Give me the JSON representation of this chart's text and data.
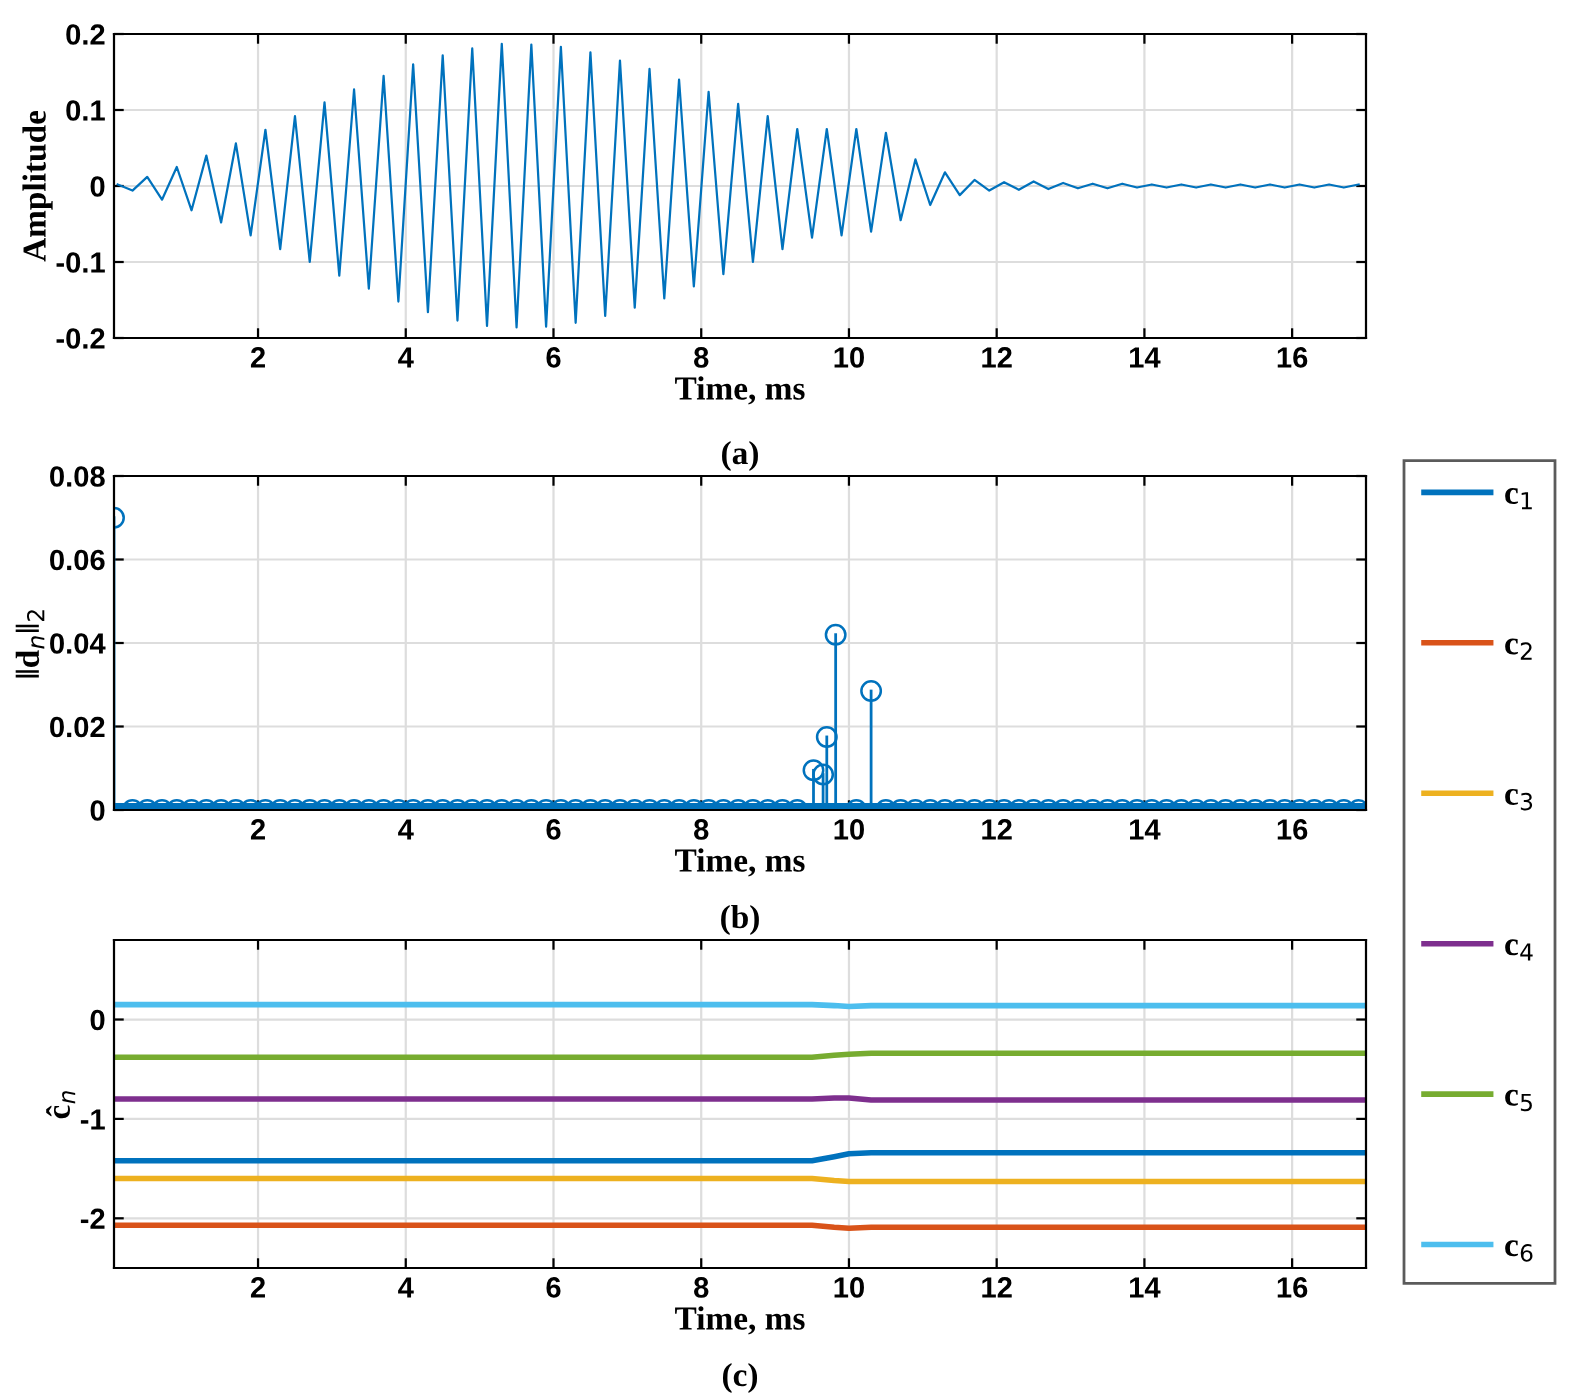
{
  "chart_data": [
    {
      "type": "line",
      "xlabel": "Time, ms",
      "ylabel": "Amplitude",
      "annotations": [
        "(a)"
      ],
      "xlim": [
        0.05,
        17
      ],
      "xticks": [
        2,
        4,
        6,
        8,
        10,
        12,
        14,
        16
      ],
      "ylim": [
        -0.2,
        0.2
      ],
      "yticks": [
        -0.2,
        -0.1,
        0,
        0.1,
        0.2
      ],
      "grid": true,
      "x": [
        0.1,
        0.3,
        0.5,
        0.7,
        0.9,
        1.1,
        1.3,
        1.5,
        1.7,
        1.9,
        2.1,
        2.3,
        2.5,
        2.7,
        2.9,
        3.1,
        3.3,
        3.5,
        3.7,
        3.9,
        4.1,
        4.3,
        4.5,
        4.7,
        4.9,
        5.1,
        5.3,
        5.5,
        5.7,
        5.9,
        6.1,
        6.3,
        6.5,
        6.7,
        6.9,
        7.1,
        7.3,
        7.5,
        7.7,
        7.9,
        8.1,
        8.3,
        8.5,
        8.7,
        8.9,
        9.1,
        9.3,
        9.5,
        9.7,
        9.9,
        10.1,
        10.3,
        10.5,
        10.7,
        10.9,
        11.1,
        11.3,
        11.5,
        11.7,
        11.9,
        12.1,
        12.3,
        12.5,
        12.7,
        12.9,
        13.1,
        13.3,
        13.5,
        13.7,
        13.9,
        14.1,
        14.3,
        14.5,
        14.7,
        14.9,
        15.1,
        15.3,
        15.5,
        15.7,
        15.9,
        16.1,
        16.3,
        16.5,
        16.7,
        16.9
      ],
      "series": [
        {
          "color": "#0072bd",
          "values": [
            0.002,
            -0.006,
            0.012,
            -0.018,
            0.025,
            -0.032,
            0.04,
            -0.048,
            0.056,
            -0.065,
            0.074,
            -0.083,
            0.092,
            -0.1,
            0.11,
            -0.118,
            0.127,
            -0.135,
            0.145,
            -0.152,
            0.16,
            -0.166,
            0.172,
            -0.177,
            0.181,
            -0.184,
            0.187,
            -0.186,
            0.186,
            -0.185,
            0.183,
            -0.18,
            0.176,
            -0.171,
            0.165,
            -0.16,
            0.154,
            -0.148,
            0.14,
            -0.132,
            0.124,
            -0.116,
            0.108,
            -0.1,
            0.092,
            -0.083,
            0.075,
            -0.068,
            0.075,
            -0.065,
            0.075,
            -0.06,
            0.07,
            -0.045,
            0.035,
            -0.025,
            0.018,
            -0.012,
            0.008,
            -0.006,
            0.005,
            -0.005,
            0.006,
            -0.004,
            0.004,
            -0.003,
            0.003,
            -0.003,
            0.003,
            -0.002,
            0.002,
            -0.002,
            0.002,
            -0.002,
            0.002,
            -0.002,
            0.002,
            -0.002,
            0.002,
            -0.002,
            0.002,
            -0.002,
            0.002,
            -0.002,
            0.002
          ]
        }
      ]
    },
    {
      "type": "lollipop",
      "xlabel": "Time, ms",
      "ylabel": "‖d$_{n}$‖$_{2}$",
      "annotations": [
        "(b)"
      ],
      "xlim": [
        0.05,
        17
      ],
      "xticks": [
        2,
        4,
        6,
        8,
        10,
        12,
        14,
        16
      ],
      "ylim": [
        0,
        0.08
      ],
      "yticks": [
        0,
        0.02,
        0.04,
        0.06,
        0.08
      ],
      "grid": true,
      "marker": "circle",
      "x": [
        0.05,
        0.3,
        0.5,
        0.7,
        0.9,
        1.1,
        1.3,
        1.5,
        1.7,
        1.9,
        2.1,
        2.3,
        2.5,
        2.7,
        2.9,
        3.1,
        3.3,
        3.5,
        3.7,
        3.9,
        4.1,
        4.3,
        4.5,
        4.7,
        4.9,
        5.1,
        5.3,
        5.5,
        5.7,
        5.9,
        6.1,
        6.3,
        6.5,
        6.7,
        6.9,
        7.1,
        7.3,
        7.5,
        7.7,
        7.9,
        8.1,
        8.3,
        8.5,
        8.7,
        8.9,
        9.1,
        9.3,
        9.52,
        9.65,
        9.7,
        9.82,
        10.1,
        10.3,
        10.5,
        10.7,
        10.9,
        11.1,
        11.3,
        11.5,
        11.7,
        11.9,
        12.1,
        12.3,
        12.5,
        12.7,
        12.9,
        13.1,
        13.3,
        13.5,
        13.7,
        13.9,
        14.1,
        14.3,
        14.5,
        14.7,
        14.9,
        15.1,
        15.3,
        15.5,
        15.7,
        15.9,
        16.1,
        16.3,
        16.5,
        16.7,
        16.9
      ],
      "series": [
        {
          "color": "#0072bd",
          "values": [
            0.07,
            0,
            0,
            0,
            0,
            0,
            0,
            0,
            0,
            0,
            0,
            0,
            0,
            0,
            0,
            0,
            0,
            0,
            0,
            0,
            0,
            0,
            0,
            0,
            0,
            0,
            0,
            0,
            0,
            0,
            0,
            0,
            0,
            0,
            0,
            0,
            0,
            0,
            0,
            0,
            0,
            0,
            0,
            0,
            0,
            0,
            0,
            0.0095,
            0.0085,
            0.0175,
            0.042,
            0,
            0.0285,
            0,
            0,
            0,
            0,
            0,
            0,
            0,
            0,
            0,
            0,
            0,
            0,
            0,
            0,
            0,
            0,
            0,
            0,
            0,
            0,
            0,
            0,
            0,
            0,
            0,
            0,
            0,
            0,
            0,
            0,
            0,
            0,
            0
          ]
        }
      ]
    },
    {
      "type": "line",
      "xlabel": "Time, ms",
      "ylabel": "ĉ$_{n}$",
      "annotations": [
        "(c)"
      ],
      "xlim": [
        0.05,
        17
      ],
      "xticks": [
        2,
        4,
        6,
        8,
        10,
        12,
        14,
        16
      ],
      "ylim": [
        -2.5,
        0.8
      ],
      "yticks": [
        -2,
        -1,
        0
      ],
      "grid": true,
      "legend": "right",
      "x": [
        0.05,
        9.5,
        9.8,
        10.0,
        10.3,
        17
      ],
      "series": [
        {
          "name": "c$_{1}$",
          "color": "#0072bd",
          "values": [
            -1.42,
            -1.42,
            -1.38,
            -1.35,
            -1.34,
            -1.34
          ]
        },
        {
          "name": "c$_{2}$",
          "color": "#d95319",
          "values": [
            -2.07,
            -2.07,
            -2.09,
            -2.1,
            -2.09,
            -2.09
          ]
        },
        {
          "name": "c$_{3}$",
          "color": "#edb120",
          "values": [
            -1.6,
            -1.6,
            -1.62,
            -1.63,
            -1.63,
            -1.63
          ]
        },
        {
          "name": "c$_{4}$",
          "color": "#7e2f8e",
          "values": [
            -0.8,
            -0.8,
            -0.79,
            -0.79,
            -0.81,
            -0.81
          ]
        },
        {
          "name": "c$_{5}$",
          "color": "#77ac30",
          "values": [
            -0.38,
            -0.38,
            -0.36,
            -0.35,
            -0.34,
            -0.34
          ]
        },
        {
          "name": "c$_{6}$",
          "color": "#4dbeee",
          "values": [
            0.15,
            0.15,
            0.14,
            0.13,
            0.14,
            0.14
          ]
        }
      ]
    }
  ]
}
